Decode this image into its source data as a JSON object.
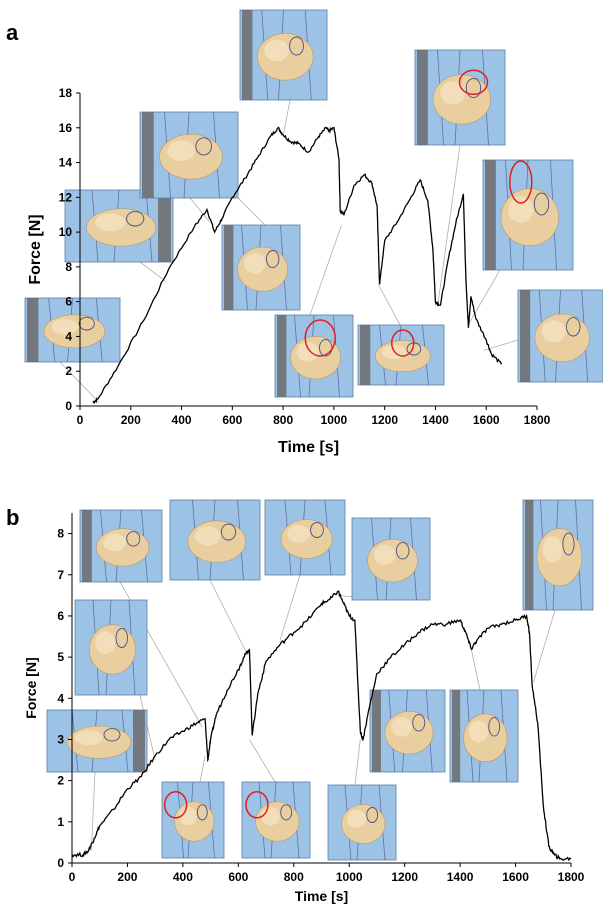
{
  "panels": [
    {
      "label": "a"
    },
    {
      "label": "b"
    }
  ],
  "colors": {
    "line": "#000000",
    "photo_background": "#9cc3e6",
    "tissue": "#e9cfa0",
    "suture": "#4a4d8c",
    "clamp": "#6b6b6b",
    "marker_circle": "#e02020",
    "leader_line": "#b0b0b0"
  },
  "chart_data": [
    {
      "type": "line",
      "panel": "a",
      "xlabel": "Time [s]",
      "ylabel": "Force [N]",
      "xlim": [
        0,
        1800
      ],
      "ylim": [
        0,
        18
      ],
      "xticks": [
        0,
        200,
        400,
        600,
        800,
        1000,
        1200,
        1400,
        1600,
        1800
      ],
      "yticks": [
        0,
        2,
        4,
        6,
        8,
        10,
        12,
        14,
        16,
        18
      ],
      "grid": false,
      "series": [
        {
          "x": [
            50,
            70,
            150,
            250,
            350,
            450,
            500,
            530,
            560,
            600,
            650,
            700,
            750,
            780,
            800,
            830,
            860,
            900,
            940,
            970,
            980,
            1000,
            1020,
            1025,
            1040,
            1080,
            1120,
            1150,
            1170,
            1180,
            1200,
            1250,
            1300,
            1340,
            1370,
            1390,
            1400,
            1420,
            1450,
            1480,
            1510,
            1520,
            1530,
            1540,
            1560,
            1600,
            1620,
            1660
          ],
          "y": [
            0.2,
            0.4,
            2.3,
            4.9,
            7.9,
            10.3,
            11.3,
            10.0,
            10.8,
            12.0,
            13.1,
            14.3,
            15.5,
            16.0,
            15.6,
            15.2,
            15.1,
            14.6,
            15.5,
            16.0,
            15.8,
            16.0,
            14.2,
            11.2,
            11.0,
            12.7,
            13.3,
            12.8,
            11.5,
            7.0,
            9.5,
            10.6,
            11.9,
            13.0,
            11.8,
            9.0,
            6.0,
            5.8,
            8.4,
            10.5,
            12.2,
            7.3,
            4.5,
            6.3,
            5.0,
            3.8,
            3.0,
            2.4
          ]
        }
      ],
      "markers": [
        {
          "x": 960,
          "y": 3.9,
          "label": "circle"
        },
        {
          "x": 1270,
          "y": 3.8,
          "label": "circle"
        }
      ]
    },
    {
      "type": "line",
      "panel": "b",
      "xlabel": "Time [s]",
      "ylabel": "Force [N]",
      "xlim": [
        0,
        1800
      ],
      "ylim": [
        0,
        8.5
      ],
      "xticks": [
        0,
        200,
        400,
        600,
        800,
        1000,
        1200,
        1400,
        1600,
        1800
      ],
      "yticks": [
        0,
        1,
        2,
        3,
        4,
        5,
        6,
        7,
        8
      ],
      "grid": false,
      "series": [
        {
          "x": [
            0,
            40,
            60,
            80,
            100,
            150,
            200,
            250,
            300,
            350,
            400,
            450,
            480,
            490,
            500,
            520,
            560,
            600,
            620,
            640,
            650,
            670,
            700,
            750,
            800,
            850,
            900,
            930,
            960,
            980,
            1000,
            1020,
            1040,
            1050,
            1070,
            1100,
            1150,
            1200,
            1250,
            1300,
            1350,
            1400,
            1420,
            1440,
            1460,
            1500,
            1550,
            1600,
            1640,
            1650,
            1660,
            1680,
            1700,
            1720,
            1740,
            1760,
            1800
          ],
          "y": [
            0.2,
            0.2,
            0.3,
            0.6,
            0.9,
            1.3,
            1.8,
            2.1,
            2.6,
            3.0,
            3.2,
            3.4,
            3.5,
            2.5,
            3.0,
            3.6,
            4.2,
            4.7,
            5.0,
            5.2,
            3.1,
            4.1,
            4.9,
            5.3,
            5.6,
            5.9,
            6.3,
            6.4,
            6.6,
            6.3,
            6.0,
            5.9,
            3.2,
            3.0,
            3.7,
            4.6,
            5.0,
            5.3,
            5.6,
            5.8,
            5.8,
            5.9,
            5.6,
            5.2,
            5.4,
            5.7,
            5.8,
            5.9,
            6.0,
            5.6,
            4.3,
            3.4,
            1.4,
            0.4,
            0.2,
            0.1,
            0.1
          ]
        }
      ],
      "markers": [
        {
          "x": 370,
          "y": 1.4,
          "label": "circle"
        },
        {
          "x": 650,
          "y": 1.4,
          "label": "circle"
        }
      ]
    }
  ]
}
